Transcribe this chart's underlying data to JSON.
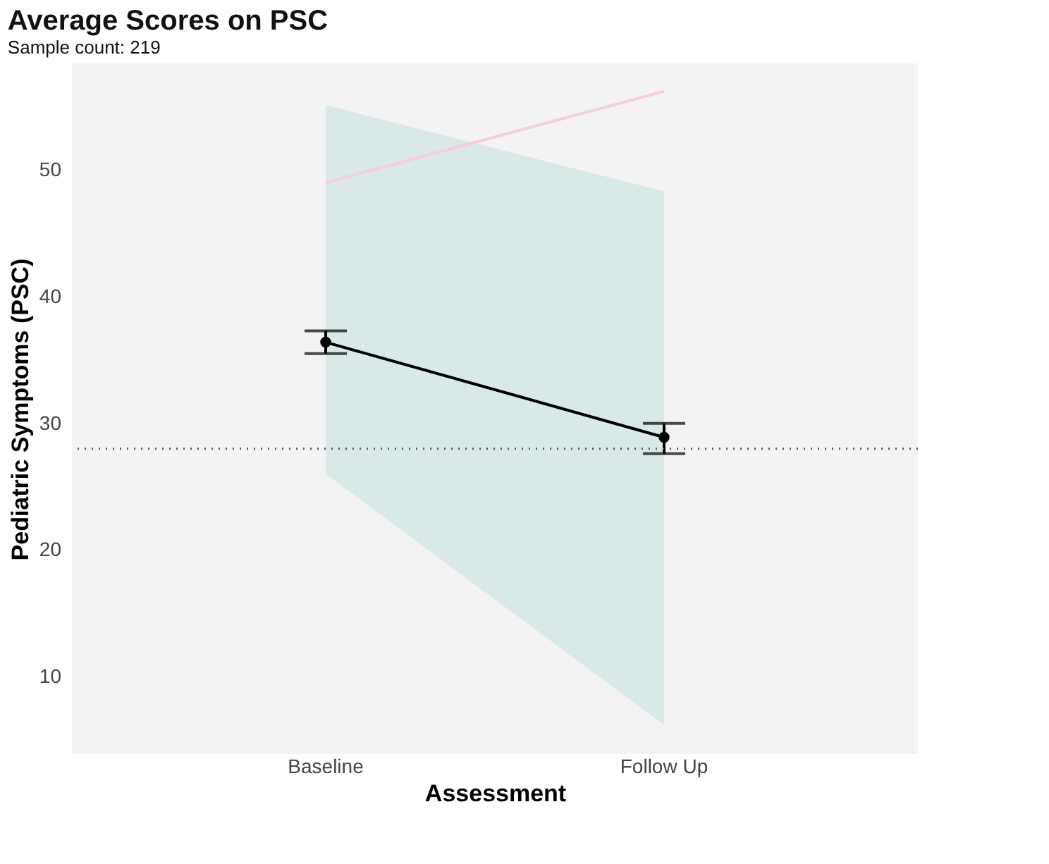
{
  "chart_data": {
    "type": "line",
    "title": "Average Scores on PSC",
    "subtitle": "Sample count:  219",
    "xlabel": "Assessment",
    "ylabel": "Pediatric Symptoms (PSC)",
    "categories": [
      "Baseline",
      "Follow Up"
    ],
    "series": [
      {
        "type": "area",
        "color": "#d5e8e6",
        "lower": [
          26,
          6.2
        ],
        "upper": [
          55.1,
          48.3
        ],
        "values": [
          null,
          null
        ]
      },
      {
        "type": "line",
        "color": "#f6cde0",
        "values": [
          49,
          56.2
        ]
      },
      {
        "color": "#000000",
        "values": [
          36.4,
          28.9
        ],
        "errors": [
          [
            35.5,
            37.3
          ],
          [
            27.6,
            30.0
          ]
        ],
        "marker": "circle"
      }
    ],
    "ylim": [
      3.9,
      58.4
    ],
    "yticks": [
      10,
      20,
      30,
      40,
      50
    ],
    "grid": false,
    "ref_lines": [
      {
        "axis": "y",
        "value": 28,
        "line_style": "dotted",
        "color": "#555555"
      }
    ]
  }
}
